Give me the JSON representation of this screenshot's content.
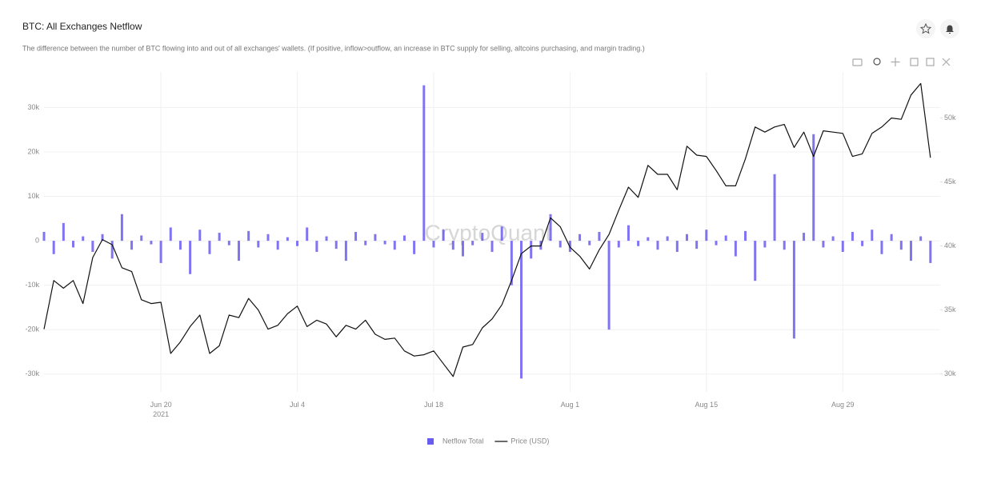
{
  "chart_data": {
    "type": "combo",
    "title": "BTC: All Exchanges Netflow",
    "subtitle": "The difference between the number of BTC flowing into and out of all exchanges' wallets. (If positive, inflow>outflow, an increase in BTC supply for selling, altcoins purchasing, and margin trading.)",
    "watermark": "CryptoQuant",
    "x": [
      "2021-06-08",
      "2021-06-09",
      "2021-06-10",
      "2021-06-11",
      "2021-06-12",
      "2021-06-13",
      "2021-06-14",
      "2021-06-15",
      "2021-06-16",
      "2021-06-17",
      "2021-06-18",
      "2021-06-19",
      "2021-06-20",
      "2021-06-21",
      "2021-06-22",
      "2021-06-23",
      "2021-06-24",
      "2021-06-25",
      "2021-06-26",
      "2021-06-27",
      "2021-06-28",
      "2021-06-29",
      "2021-06-30",
      "2021-07-01",
      "2021-07-02",
      "2021-07-03",
      "2021-07-04",
      "2021-07-05",
      "2021-07-06",
      "2021-07-07",
      "2021-07-08",
      "2021-07-09",
      "2021-07-10",
      "2021-07-11",
      "2021-07-12",
      "2021-07-13",
      "2021-07-14",
      "2021-07-15",
      "2021-07-16",
      "2021-07-17",
      "2021-07-18",
      "2021-07-19",
      "2021-07-20",
      "2021-07-21",
      "2021-07-22",
      "2021-07-23",
      "2021-07-24",
      "2021-07-25",
      "2021-07-26",
      "2021-07-27",
      "2021-07-28",
      "2021-07-29",
      "2021-07-30",
      "2021-07-31",
      "2021-08-01",
      "2021-08-02",
      "2021-08-03",
      "2021-08-04",
      "2021-08-05",
      "2021-08-06",
      "2021-08-07",
      "2021-08-08",
      "2021-08-09",
      "2021-08-10",
      "2021-08-11",
      "2021-08-12",
      "2021-08-13",
      "2021-08-14",
      "2021-08-15",
      "2021-08-16",
      "2021-08-17",
      "2021-08-18",
      "2021-08-19",
      "2021-08-20",
      "2021-08-21",
      "2021-08-22",
      "2021-08-23",
      "2021-08-24",
      "2021-08-25",
      "2021-08-26",
      "2021-08-27",
      "2021-08-28",
      "2021-08-29",
      "2021-08-30",
      "2021-08-31",
      "2021-09-01",
      "2021-09-02",
      "2021-09-03",
      "2021-09-04",
      "2021-09-05",
      "2021-09-06",
      "2021-09-07"
    ],
    "series": [
      {
        "name": "Netflow Total",
        "type": "bar",
        "color": "#6a5cf0",
        "axis": "y",
        "values": [
          2000,
          -3000,
          4000,
          -1500,
          1000,
          -2500,
          1500,
          -4000,
          6000,
          -2000,
          1200,
          -800,
          -5000,
          3000,
          -2000,
          -7500,
          2500,
          -3000,
          1800,
          -1000,
          -4500,
          2200,
          -1500,
          1500,
          -2000,
          800,
          -1200,
          3000,
          -2500,
          1000,
          -1800,
          -4500,
          2000,
          -1000,
          1500,
          -800,
          -2000,
          1200,
          -3000,
          35000,
          -1500,
          2500,
          -2000,
          -3500,
          -1000,
          1800,
          -2500,
          3200,
          -10000,
          -31000,
          -4000,
          -2000,
          6000,
          -1500,
          -2500,
          1500,
          -1000,
          2000,
          -20000,
          -1500,
          3500,
          -1200,
          800,
          -2000,
          1000,
          -2500,
          1500,
          -1800,
          2500,
          -1000,
          1200,
          -3500,
          2200,
          -9000,
          -1500,
          15000,
          -2000,
          -22000,
          1800,
          24000,
          -1500,
          1000,
          -2500,
          2000,
          -1200,
          2500,
          -3000,
          1500,
          -2000,
          -4500,
          1000,
          -5000
        ]
      },
      {
        "name": "Price (USD)",
        "type": "line",
        "color": "#111111",
        "axis": "y2",
        "values": [
          33500,
          37300,
          36700,
          37300,
          35500,
          39100,
          40500,
          40100,
          38300,
          38000,
          35800,
          35500,
          35600,
          31600,
          32500,
          33700,
          34600,
          31600,
          32200,
          34600,
          34400,
          35900,
          35000,
          33500,
          33800,
          34700,
          35300,
          33700,
          34200,
          33900,
          32900,
          33800,
          33500,
          34200,
          33100,
          32700,
          32800,
          31800,
          31400,
          31500,
          31800,
          30800,
          29800,
          32100,
          32300,
          33600,
          34300,
          35400,
          37300,
          39400,
          40000,
          40000,
          42200,
          41500,
          39900,
          39200,
          38200,
          39700,
          40900,
          42800,
          44600,
          43800,
          46300,
          45600,
          45600,
          44400,
          47800,
          47100,
          47000,
          45900,
          44700,
          44700,
          46800,
          49300,
          48900,
          49300,
          49500,
          47700,
          48900,
          47000,
          49000,
          48900,
          48800,
          47000,
          47200,
          48800,
          49300,
          50000,
          49900,
          51800,
          52700,
          46900
        ]
      }
    ],
    "xlim": [
      "2021-06-08",
      "2021-09-08"
    ],
    "xticks": [
      {
        "value": "2021-06-20",
        "label": "Jun 20\n2021"
      },
      {
        "value": "2021-07-04",
        "label": "Jul 4"
      },
      {
        "value": "2021-07-18",
        "label": "Jul 18"
      },
      {
        "value": "2021-08-01",
        "label": "Aug 1"
      },
      {
        "value": "2021-08-15",
        "label": "Aug 15"
      },
      {
        "value": "2021-08-29",
        "label": "Aug 29"
      }
    ],
    "ylim": [
      -34000,
      38000
    ],
    "yticks": [
      {
        "value": 30000,
        "label": "30k"
      },
      {
        "value": 20000,
        "label": "20k"
      },
      {
        "value": 10000,
        "label": "10k"
      },
      0,
      {
        "value": -10000,
        "label": "-10k"
      },
      {
        "value": -20000,
        "label": "-20k"
      },
      {
        "value": -30000,
        "label": "-30k"
      }
    ],
    "y2lim": [
      28600,
      53600
    ],
    "y2ticks": [
      {
        "value": 50000,
        "label": "50k"
      },
      {
        "value": 45000,
        "label": "45k"
      },
      {
        "value": 40000,
        "label": "40k"
      },
      {
        "value": 35000,
        "label": "35k"
      },
      {
        "value": 30000,
        "label": "30k"
      }
    ],
    "grid": true,
    "legend": "bottom"
  }
}
